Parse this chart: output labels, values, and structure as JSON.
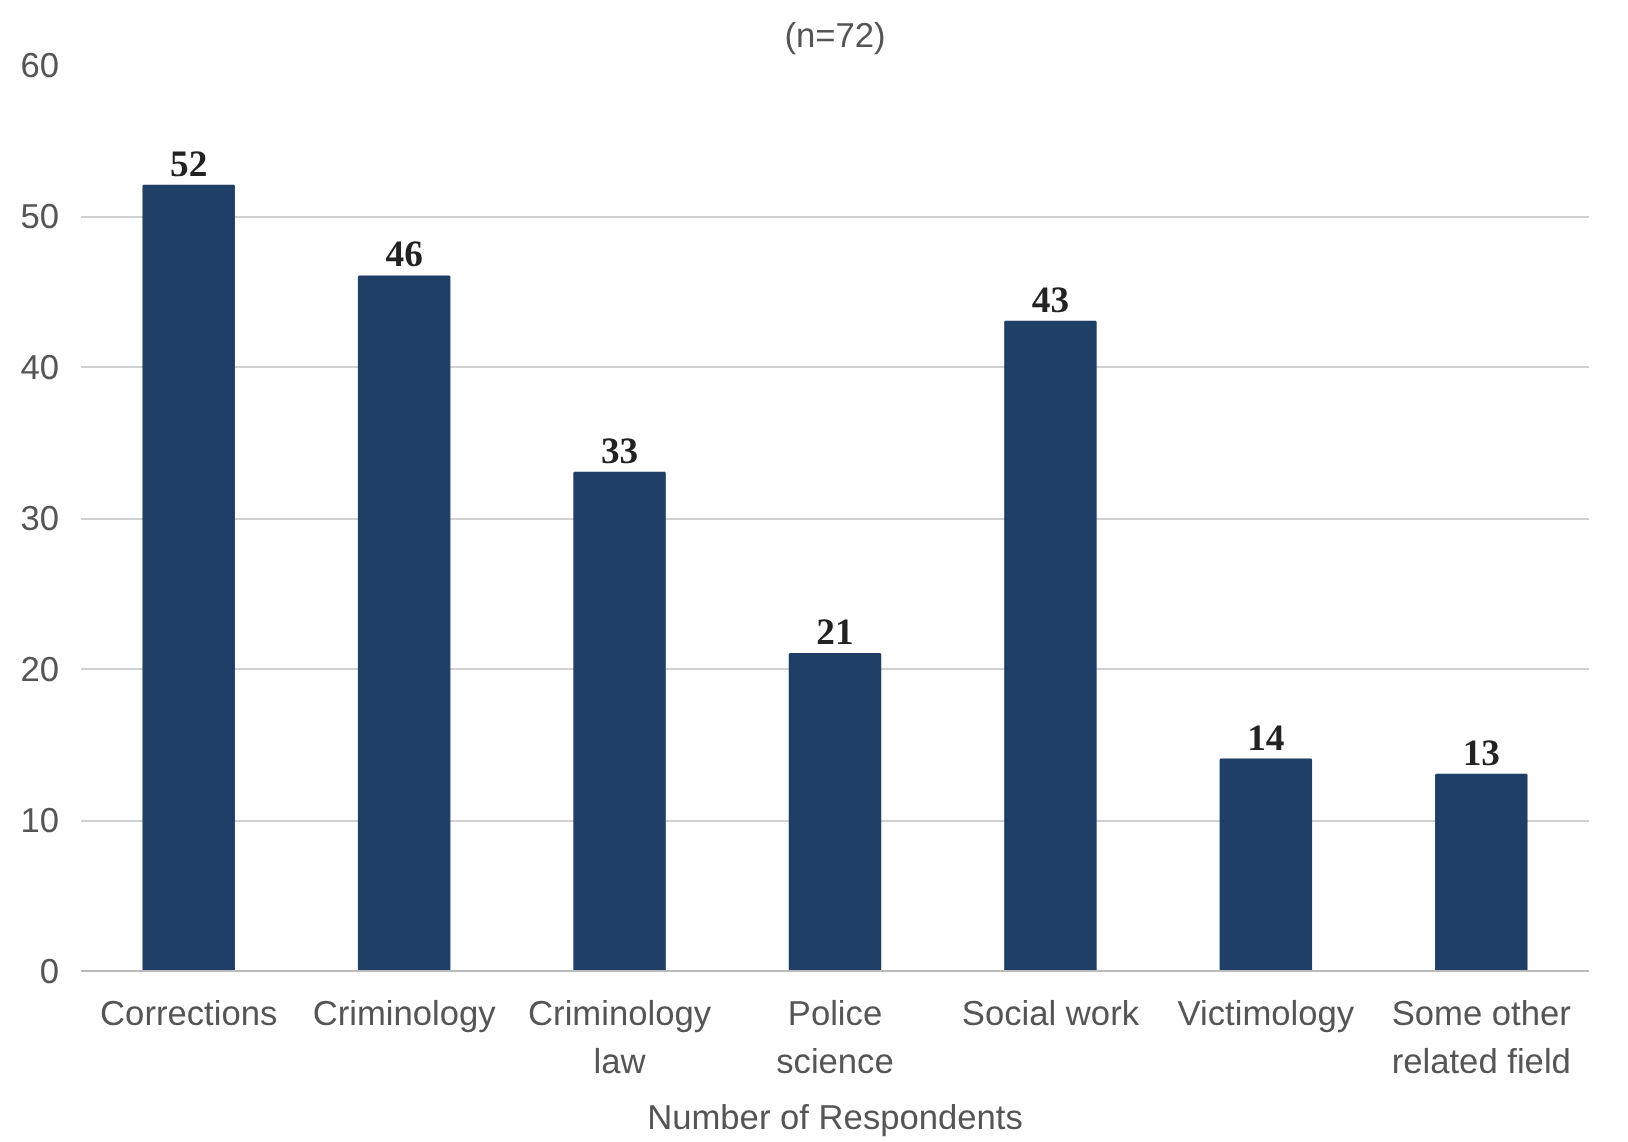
{
  "chart_data": {
    "type": "bar",
    "title": "(n=72)",
    "xlabel": "Number of Respondents",
    "categories": [
      "Corrections",
      "Criminology",
      "Criminology law",
      "Police science",
      "Social work",
      "Victimology",
      "Some other related field"
    ],
    "values": [
      52,
      46,
      33,
      21,
      43,
      14,
      13
    ],
    "color": "#1f3f66",
    "ylim": [
      0,
      60
    ],
    "yticks": [
      0,
      10,
      20,
      30,
      40,
      50,
      60
    ],
    "grid": "y",
    "data_labels": true
  }
}
